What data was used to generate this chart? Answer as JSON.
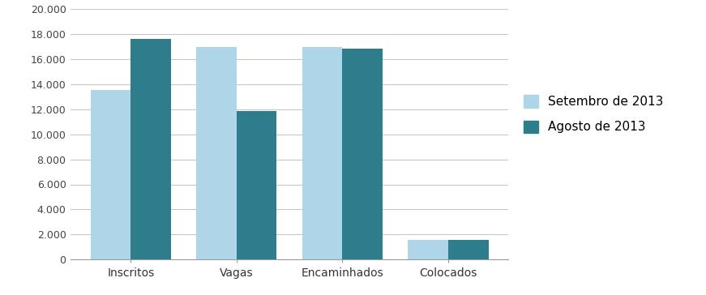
{
  "categories": [
    "Inscritos",
    "Vagas",
    "Encaminhados",
    "Colocados"
  ],
  "setembro_values": [
    13514,
    16982,
    16960,
    1600
  ],
  "agosto_values": [
    17621,
    11820,
    16800,
    1550
  ],
  "setembro_color": "#aed6e8",
  "agosto_color": "#2e7d8c",
  "setembro_label": "Setembro de 2013",
  "agosto_label": "Agosto de 2013",
  "ylim": [
    0,
    20000
  ],
  "yticks": [
    0,
    2000,
    4000,
    6000,
    8000,
    10000,
    12000,
    14000,
    16000,
    18000,
    20000
  ],
  "ytick_labels": [
    "0",
    "2.000",
    "4.000",
    "6.000",
    "8.000",
    "10.000",
    "12.000",
    "14.000",
    "16.000",
    "18.000",
    "20.000"
  ],
  "bar_width": 0.38,
  "background_color": "#ffffff",
  "grid_color": "#c8c8c8",
  "legend_fontsize": 11
}
